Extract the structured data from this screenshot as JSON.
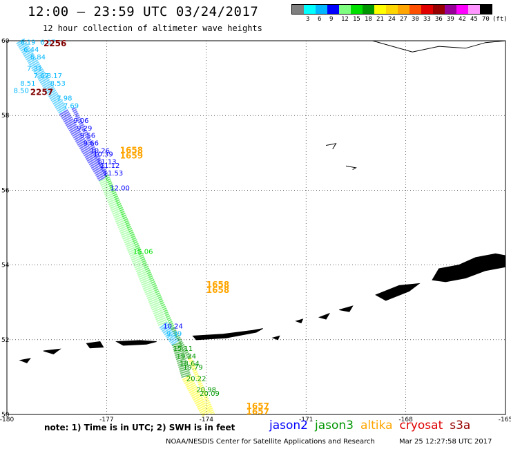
{
  "header": {
    "title": "12:00 – 23:59 UTC 03/24/2017",
    "subtitle": "12 hour collection of altimeter wave heights"
  },
  "legend": {
    "unit": "(ft)",
    "bins": [
      {
        "label": "",
        "color": "#7f7f7f"
      },
      {
        "label": "3",
        "color": "#00ffff"
      },
      {
        "label": "6",
        "color": "#00b7ff"
      },
      {
        "label": "9",
        "color": "#0000ff"
      },
      {
        "label": "12",
        "color": "#7fff7f"
      },
      {
        "label": "15",
        "color": "#00e000"
      },
      {
        "label": "18",
        "color": "#009600"
      },
      {
        "label": "21",
        "color": "#ffff00"
      },
      {
        "label": "24",
        "color": "#ffd700"
      },
      {
        "label": "27",
        "color": "#ffa500"
      },
      {
        "label": "30",
        "color": "#ff5000"
      },
      {
        "label": "33",
        "color": "#e00000"
      },
      {
        "label": "36",
        "color": "#960000"
      },
      {
        "label": "39",
        "color": "#960096"
      },
      {
        "label": "42",
        "color": "#ff00ff"
      },
      {
        "label": "45",
        "color": "#ff96ff"
      },
      {
        "label": "70",
        "color": "#000000"
      }
    ]
  },
  "map": {
    "lon_range": [
      -180,
      -165
    ],
    "lat_range": [
      50,
      60
    ],
    "lon_ticks": [
      "-180",
      "-177",
      "-174",
      "-171",
      "-168",
      "-165"
    ],
    "lat_ticks": [
      "50",
      "52",
      "54",
      "56",
      "58",
      "60"
    ],
    "land_color": "#000000",
    "grid": "dotted",
    "swh_labels": [
      {
        "lon": -179.6,
        "lat": 59.9,
        "text": "6.19",
        "color": "#00b7ff"
      },
      {
        "lon": -179.0,
        "lat": 59.9,
        "text": "6.07",
        "color": "#00b7ff"
      },
      {
        "lon": -179.5,
        "lat": 59.7,
        "text": "6.44",
        "color": "#00b7ff"
      },
      {
        "lon": -179.3,
        "lat": 59.5,
        "text": "6.84",
        "color": "#00b7ff"
      },
      {
        "lon": -179.4,
        "lat": 59.2,
        "text": "7.31",
        "color": "#00b7ff"
      },
      {
        "lon": -179.2,
        "lat": 59.0,
        "text": "7.67",
        "color": "#00b7ff"
      },
      {
        "lon": -178.8,
        "lat": 59.0,
        "text": "8.17",
        "color": "#00b7ff"
      },
      {
        "lon": -179.6,
        "lat": 58.8,
        "text": "8.51",
        "color": "#00b7ff"
      },
      {
        "lon": -178.7,
        "lat": 58.8,
        "text": "8.53",
        "color": "#00b7ff"
      },
      {
        "lon": -179.8,
        "lat": 58.6,
        "text": "8.50",
        "color": "#00b7ff"
      },
      {
        "lon": -178.5,
        "lat": 58.4,
        "text": "7.98",
        "color": "#00b7ff"
      },
      {
        "lon": -178.3,
        "lat": 58.2,
        "text": "7.69",
        "color": "#00b7ff"
      },
      {
        "lon": -178.0,
        "lat": 57.8,
        "text": "9.06",
        "color": "#0000ff"
      },
      {
        "lon": -177.9,
        "lat": 57.6,
        "text": "9.29",
        "color": "#0000ff"
      },
      {
        "lon": -177.8,
        "lat": 57.4,
        "text": "9.56",
        "color": "#0000ff"
      },
      {
        "lon": -177.7,
        "lat": 57.2,
        "text": "9.66",
        "color": "#0000ff"
      },
      {
        "lon": -177.5,
        "lat": 57.0,
        "text": "10.26",
        "color": "#0000ff"
      },
      {
        "lon": -177.4,
        "lat": 56.9,
        "text": "10.39",
        "color": "#0000ff"
      },
      {
        "lon": -177.3,
        "lat": 56.7,
        "text": "11.13",
        "color": "#0000ff"
      },
      {
        "lon": -177.2,
        "lat": 56.6,
        "text": "11.12",
        "color": "#0000ff"
      },
      {
        "lon": -177.1,
        "lat": 56.4,
        "text": "11.53",
        "color": "#0000ff"
      },
      {
        "lon": -176.9,
        "lat": 56.0,
        "text": "12.00",
        "color": "#0000ff"
      },
      {
        "lon": -176.2,
        "lat": 54.3,
        "text": "15.06",
        "color": "#00e000"
      },
      {
        "lon": -175.3,
        "lat": 52.3,
        "text": "10.24",
        "color": "#0000ff"
      },
      {
        "lon": -175.2,
        "lat": 52.1,
        "text": "9.39",
        "color": "#00b7ff"
      },
      {
        "lon": -175.0,
        "lat": 51.7,
        "text": "15.11",
        "color": "#009600"
      },
      {
        "lon": -174.9,
        "lat": 51.5,
        "text": "19.24",
        "color": "#009600"
      },
      {
        "lon": -174.8,
        "lat": 51.3,
        "text": "18.64",
        "color": "#009600"
      },
      {
        "lon": -174.7,
        "lat": 51.2,
        "text": "19.79",
        "color": "#009600"
      },
      {
        "lon": -174.6,
        "lat": 50.9,
        "text": "20.22",
        "color": "#009600"
      },
      {
        "lon": -174.3,
        "lat": 50.6,
        "text": "20.98",
        "color": "#009600"
      },
      {
        "lon": -174.2,
        "lat": 50.5,
        "text": "20.09",
        "color": "#009600"
      }
    ],
    "time_labels": [
      {
        "lon": -178.9,
        "lat": 59.85,
        "text": "2256",
        "color": "#800000"
      },
      {
        "lon": -179.3,
        "lat": 58.55,
        "text": "2257",
        "color": "#800000"
      },
      {
        "lon": -176.6,
        "lat": 57.0,
        "text": "1658",
        "color": "#ffa500"
      },
      {
        "lon": -176.6,
        "lat": 56.85,
        "text": "1659",
        "color": "#ffa500"
      },
      {
        "lon": -174.0,
        "lat": 53.4,
        "text": "1658",
        "color": "#ffa500"
      },
      {
        "lon": -174.0,
        "lat": 53.25,
        "text": "1658",
        "color": "#ffa500"
      },
      {
        "lon": -172.8,
        "lat": 50.15,
        "text": "1657",
        "color": "#ffa500"
      },
      {
        "lon": -172.8,
        "lat": 50.0,
        "text": "1657",
        "color": "#ffa500"
      }
    ]
  },
  "footer": {
    "note": "note: 1) Time is in UTC; 2) SWH is in feet",
    "satellites": [
      {
        "name": "jason2",
        "color": "#0000ff"
      },
      {
        "name": "jason3",
        "color": "#009600"
      },
      {
        "name": "altika",
        "color": "#ffa500"
      },
      {
        "name": "cryosat",
        "color": "#e00000"
      },
      {
        "name": "s3a",
        "color": "#960000"
      }
    ],
    "credit": "NOAA/NESDIS Center for Satellite Applications and Research",
    "timestamp": "Mar 25 12:27:58 UTC 2017"
  }
}
